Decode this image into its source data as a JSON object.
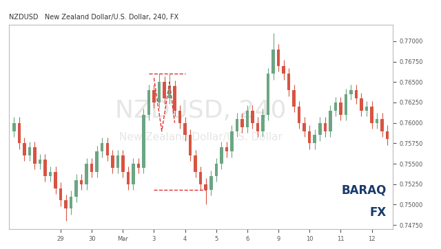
{
  "chart_data": {
    "type": "candlestick",
    "symbol": "NZDUSD",
    "title": "New Zealand Dollar/U.S. Dollar, 240, FX",
    "watermark": [
      "NZDUSD, 240",
      "New Zealand Dollar/U.S. Dollar"
    ],
    "logo": [
      "BARAQ",
      "FX"
    ],
    "categories": [
      null,
      null,
      null,
      null,
      null,
      null,
      null,
      null,
      null,
      "29",
      null,
      null,
      null,
      null,
      null,
      "30",
      null,
      null,
      null,
      null,
      null,
      "Mar",
      null,
      null,
      null,
      null,
      null,
      "3",
      null,
      null,
      null,
      null,
      null,
      "4",
      null,
      null,
      null,
      null,
      null,
      "5",
      null,
      null,
      null,
      null,
      null,
      "6",
      null,
      null,
      null,
      null,
      null,
      "9",
      null,
      null,
      null,
      null,
      null,
      "10",
      null,
      null,
      null,
      null,
      null,
      "11",
      null,
      null,
      null,
      null,
      null,
      "12",
      null,
      null,
      null
    ],
    "open": [
      0.759,
      0.76,
      0.7575,
      0.756,
      0.757,
      0.755,
      0.7555,
      0.7535,
      0.754,
      0.752,
      0.7505,
      0.7495,
      0.751,
      0.753,
      0.7525,
      0.755,
      0.754,
      0.7565,
      0.7575,
      0.756,
      0.7545,
      0.756,
      0.754,
      0.7525,
      0.755,
      0.7545,
      0.761,
      0.764,
      0.7625,
      0.765,
      0.763,
      0.7645,
      0.7615,
      0.76,
      0.7585,
      0.756,
      0.754,
      0.7525,
      0.7518,
      0.7535,
      0.755,
      0.757,
      0.7565,
      0.759,
      0.7605,
      0.7595,
      0.7615,
      0.76,
      0.759,
      0.761,
      0.766,
      0.769,
      0.767,
      0.766,
      0.764,
      0.762,
      0.76,
      0.759,
      0.7575,
      0.7585,
      0.76,
      0.759,
      0.7615,
      0.7625,
      0.761,
      0.7635,
      0.764,
      0.763,
      0.7615,
      0.762,
      0.76,
      0.7605,
      0.759
    ],
    "high": [
      0.7607,
      0.7607,
      0.7582,
      0.7577,
      0.7577,
      0.7562,
      0.7562,
      0.7547,
      0.7547,
      0.7527,
      0.7512,
      0.7517,
      0.7537,
      0.7537,
      0.7557,
      0.7557,
      0.7572,
      0.7582,
      0.7582,
      0.7567,
      0.7567,
      0.7567,
      0.7547,
      0.7557,
      0.7557,
      0.7617,
      0.7647,
      0.7647,
      0.766,
      0.7657,
      0.766,
      0.7652,
      0.7622,
      0.7607,
      0.7592,
      0.7567,
      0.7547,
      0.7532,
      0.7542,
      0.7557,
      0.7577,
      0.7577,
      0.7597,
      0.7612,
      0.7612,
      0.7622,
      0.7622,
      0.7607,
      0.7617,
      0.7667,
      0.771,
      0.7697,
      0.7677,
      0.7667,
      0.7647,
      0.7627,
      0.7607,
      0.7597,
      0.7592,
      0.7607,
      0.7607,
      0.7622,
      0.7632,
      0.7632,
      0.7642,
      0.7647,
      0.7647,
      0.7637,
      0.7627,
      0.7627,
      0.7612,
      0.7612,
      0.7597
    ],
    "low": [
      0.7583,
      0.7568,
      0.7553,
      0.7553,
      0.7543,
      0.7543,
      0.7528,
      0.7528,
      0.7513,
      0.7498,
      0.748,
      0.7488,
      0.7503,
      0.7518,
      0.7518,
      0.7533,
      0.7533,
      0.7558,
      0.7553,
      0.7538,
      0.7538,
      0.7533,
      0.7518,
      0.7518,
      0.7538,
      0.7538,
      0.7603,
      0.7618,
      0.7618,
      0.7623,
      0.7623,
      0.7608,
      0.7593,
      0.7578,
      0.7553,
      0.7533,
      0.7518,
      0.75,
      0.7511,
      0.7528,
      0.7543,
      0.7558,
      0.7558,
      0.7583,
      0.7588,
      0.7588,
      0.7593,
      0.7583,
      0.7583,
      0.7603,
      0.7653,
      0.7663,
      0.7653,
      0.7633,
      0.7613,
      0.7593,
      0.7583,
      0.7568,
      0.7568,
      0.7578,
      0.7583,
      0.7583,
      0.7608,
      0.7603,
      0.7603,
      0.7628,
      0.7623,
      0.7608,
      0.7608,
      0.7593,
      0.7593,
      0.7583,
      0.7573
    ],
    "close": [
      0.76,
      0.7575,
      0.756,
      0.757,
      0.755,
      0.7555,
      0.7535,
      0.754,
      0.752,
      0.7505,
      0.7495,
      0.751,
      0.753,
      0.7525,
      0.755,
      0.754,
      0.7565,
      0.7575,
      0.756,
      0.7545,
      0.756,
      0.754,
      0.7525,
      0.755,
      0.7545,
      0.761,
      0.764,
      0.7625,
      0.765,
      0.763,
      0.7645,
      0.7615,
      0.76,
      0.7585,
      0.756,
      0.754,
      0.7525,
      0.7518,
      0.7535,
      0.755,
      0.757,
      0.7565,
      0.759,
      0.7605,
      0.7595,
      0.7615,
      0.76,
      0.759,
      0.761,
      0.766,
      0.769,
      0.767,
      0.766,
      0.764,
      0.762,
      0.76,
      0.759,
      0.7575,
      0.7585,
      0.76,
      0.759,
      0.7615,
      0.7625,
      0.761,
      0.7635,
      0.764,
      0.763,
      0.7615,
      0.762,
      0.76,
      0.7605,
      0.759,
      0.758
    ],
    "up_color": "#6ba583",
    "down_color": "#d75442",
    "drawings": {
      "color": "#e03030",
      "line_style": "dashed",
      "levels": [
        {
          "value": 0.766,
          "from": 26,
          "to": 33
        },
        {
          "value": 0.7518,
          "from": 27,
          "to": 37
        }
      ],
      "zigzag": {
        "x": [
          27,
          28.5,
          30,
          31
        ],
        "y": [
          0.7655,
          0.759,
          0.765,
          0.76
        ]
      }
    },
    "ylim": [
      0.747,
      0.772
    ],
    "yticks": [
      {
        "value": 0.7475,
        "label": "0.74750"
      },
      {
        "value": 0.75,
        "label": "0.75000"
      },
      {
        "value": 0.7525,
        "label": "0.75250"
      },
      {
        "value": 0.755,
        "label": "0.75500"
      },
      {
        "value": 0.7575,
        "label": "0.75750"
      },
      {
        "value": 0.76,
        "label": "0.76000"
      },
      {
        "value": 0.7625,
        "label": "0.76250"
      },
      {
        "value": 0.765,
        "label": "0.76500"
      },
      {
        "value": 0.7675,
        "label": "0.76750"
      },
      {
        "value": 0.77,
        "label": "0.77000"
      }
    ],
    "grid": false
  }
}
